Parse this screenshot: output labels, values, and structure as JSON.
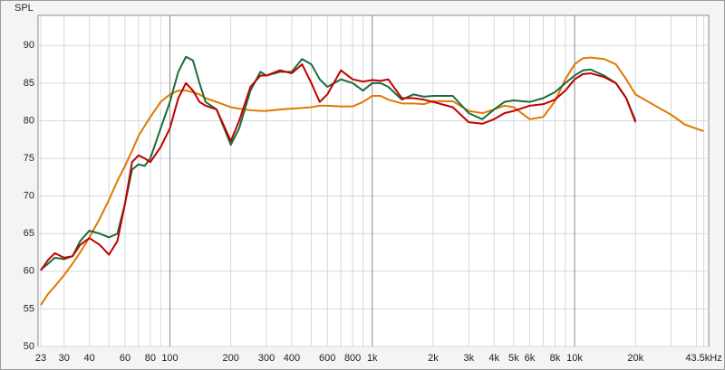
{
  "chart_data": {
    "type": "line",
    "y_label": "SPL",
    "xscale": "log",
    "grid": true,
    "xlim": [
      22.3,
      46000
    ],
    "ylim": [
      50,
      94
    ],
    "yticks": [
      50,
      55,
      60,
      65,
      70,
      75,
      80,
      85,
      90
    ],
    "xticks": [
      23,
      30,
      40,
      60,
      80,
      100,
      200,
      300,
      400,
      600,
      800,
      {
        "value": 1000,
        "label": "1k"
      },
      {
        "value": 2000,
        "label": "2k"
      },
      {
        "value": 3000,
        "label": "3k"
      },
      {
        "value": 4000,
        "label": "4k"
      },
      {
        "value": 5000,
        "label": "5k"
      },
      {
        "value": 6000,
        "label": "6k"
      },
      {
        "value": 8000,
        "label": "8k"
      },
      {
        "value": 10000,
        "label": "10k"
      },
      {
        "value": 20000,
        "label": "20k"
      },
      {
        "value": 43500,
        "label": "43.5kHz"
      }
    ],
    "xminor": [
      50,
      70,
      90,
      500,
      700,
      900,
      7000,
      9000,
      30000,
      40000
    ],
    "x": [
      23,
      25,
      27,
      30,
      33,
      36,
      40,
      45,
      50,
      55,
      60,
      65,
      70,
      75,
      80,
      90,
      100,
      110,
      120,
      130,
      140,
      150,
      170,
      200,
      220,
      250,
      280,
      300,
      350,
      400,
      450,
      500,
      550,
      600,
      700,
      800,
      900,
      1000,
      1100,
      1200,
      1400,
      1600,
      1800,
      2000,
      2500,
      3000,
      3500,
      4000,
      4500,
      5000,
      6000,
      7000,
      8000,
      9000,
      10000,
      11000,
      12000,
      14000,
      16000,
      18000,
      20000,
      25000,
      30000,
      35000,
      43500
    ],
    "series": [
      {
        "color": "#e07800",
        "values": [
          55.5,
          57,
          58,
          59.5,
          61,
          62.5,
          64.5,
          67,
          69.5,
          72,
          74,
          76,
          78,
          79.3,
          80.5,
          82.5,
          83.5,
          84,
          84,
          83.8,
          83.5,
          83,
          82.5,
          81.8,
          81.6,
          81.4,
          81.3,
          81.3,
          81.5,
          81.6,
          81.7,
          81.8,
          82,
          82,
          81.9,
          81.9,
          82.5,
          83.3,
          83.3,
          82.8,
          82.3,
          82.3,
          82.2,
          82.6,
          82.6,
          81.3,
          81,
          81.5,
          82,
          81.8,
          80.2,
          80.5,
          82.6,
          85.5,
          87.5,
          88.3,
          88.4,
          88.2,
          87.5,
          85.5,
          83.5,
          82,
          80.8,
          79.5,
          78.6
        ]
      },
      {
        "color": "#1b6b3a",
        "values": [
          60.2,
          61,
          61.8,
          61.6,
          62,
          64,
          65.4,
          65,
          64.5,
          65,
          69,
          73.5,
          74.2,
          74,
          75,
          79,
          82.5,
          86.5,
          88.5,
          88,
          85,
          82.5,
          81.5,
          76.8,
          79,
          84,
          86.5,
          86,
          86.5,
          86.5,
          88.2,
          87.5,
          85.5,
          84.5,
          85.5,
          85,
          84,
          85,
          85,
          84.5,
          82.8,
          83.5,
          83.2,
          83.3,
          83.3,
          81,
          80.2,
          81.5,
          82.5,
          82.7,
          82.5,
          83,
          83.8,
          85,
          86,
          86.7,
          86.8,
          86,
          85,
          83,
          80,
          null,
          null,
          null,
          null
        ]
      },
      {
        "color": "#c00000",
        "values": [
          60.1,
          61.5,
          62.4,
          61.8,
          62,
          63.5,
          64.4,
          63.5,
          62.2,
          64,
          69,
          74.5,
          75.4,
          75,
          74.5,
          76.5,
          79,
          83,
          85,
          84,
          82.5,
          82,
          81.5,
          77.3,
          80,
          84.5,
          86,
          86,
          86.7,
          86.3,
          87.5,
          85,
          82.5,
          83.5,
          86.7,
          85.5,
          85.2,
          85.4,
          85.3,
          85.5,
          83,
          83,
          82.8,
          82.5,
          81.8,
          79.8,
          79.6,
          80.2,
          81,
          81.3,
          82,
          82.2,
          82.8,
          84,
          85.5,
          86.2,
          86.3,
          85.8,
          85,
          83,
          79.8,
          null,
          null,
          null,
          null
        ]
      }
    ]
  }
}
